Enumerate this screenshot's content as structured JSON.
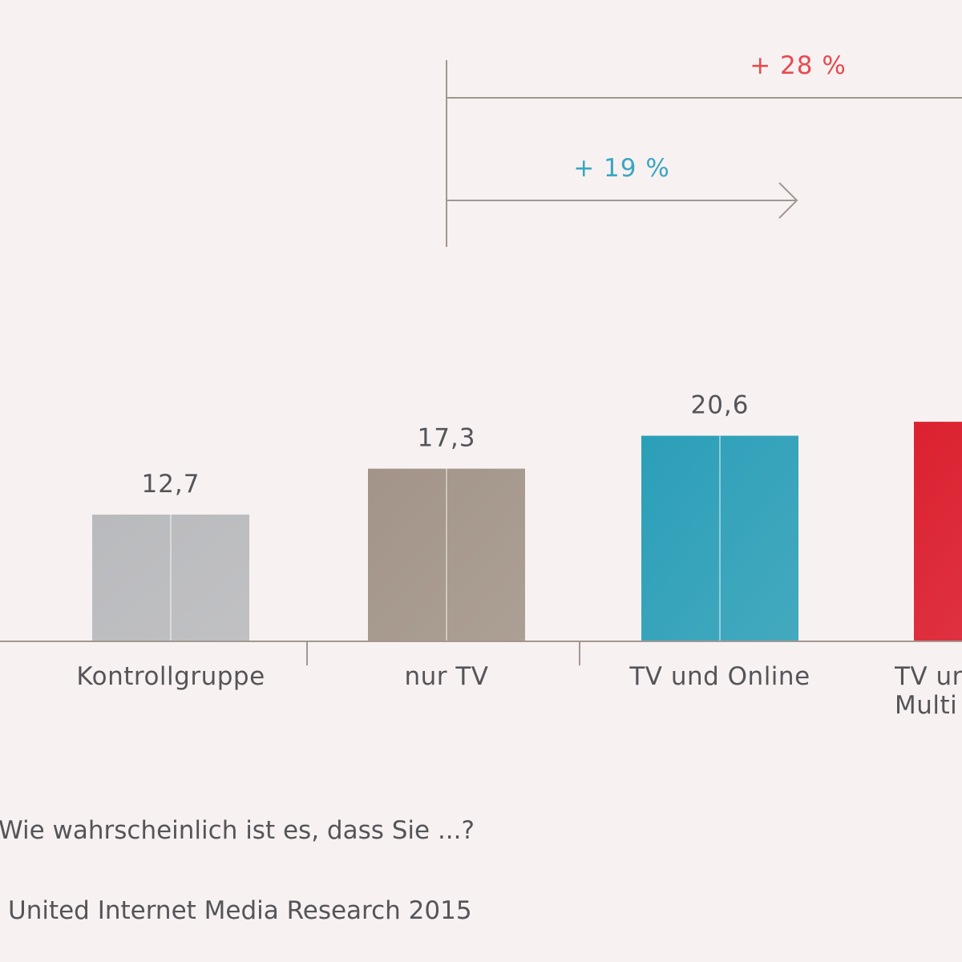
{
  "chart_data": {
    "type": "bar",
    "categories": [
      "Kontrollgruppe",
      "nur TV",
      "TV und Online",
      "TV und Multi"
    ],
    "category_label_lines": [
      [
        "Kontrollgruppe"
      ],
      [
        "nur TV"
      ],
      [
        "TV und Online"
      ],
      [
        "TV und",
        "Multi"
      ]
    ],
    "values": [
      12.7,
      17.3,
      20.6,
      22.0
    ],
    "value_labels": [
      "12,7",
      "17,3",
      "20,6",
      ""
    ],
    "colors": [
      "#b9babd",
      "#a29488",
      "#2b9fb8",
      "#dc2130"
    ],
    "annotations": [
      {
        "text": "+ 28 %",
        "color": "#e84a4f",
        "from_category": 1,
        "to_category": 3
      },
      {
        "text": "+ 19 %",
        "color": "#3aa6c2",
        "from_category": 1,
        "to_category": 2
      }
    ],
    "title": "",
    "xlabel": "",
    "ylabel": "",
    "ylim": [
      0,
      25
    ],
    "grid": false,
    "legend": "none"
  },
  "notes": {
    "question": "Wie wahrscheinlich ist es, dass Sie ...?",
    "source": "United Internet Media Research 2015"
  }
}
